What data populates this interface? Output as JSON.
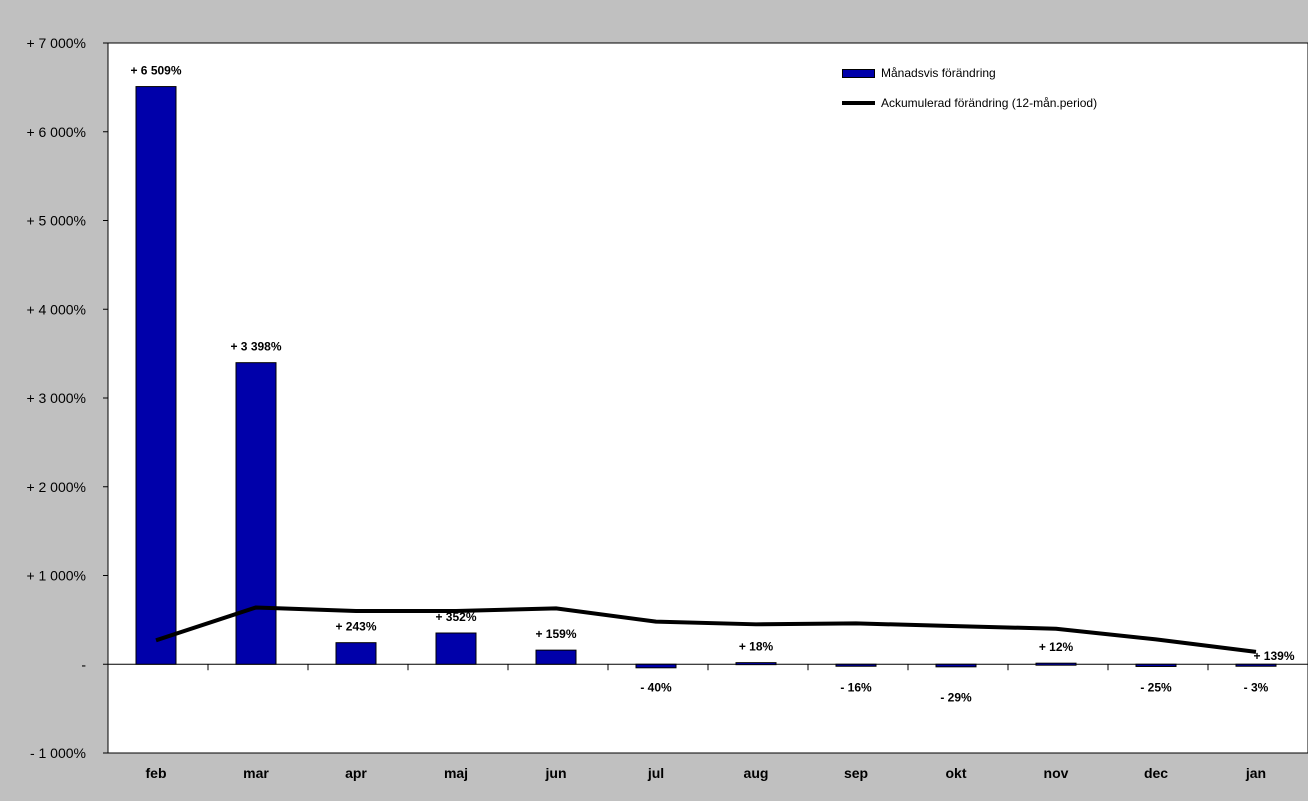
{
  "chart_data": {
    "type": "bar",
    "title": "",
    "xlabel": "",
    "ylabel": "",
    "categories": [
      "feb",
      "mar",
      "apr",
      "maj",
      "jun",
      "jul",
      "aug",
      "sep",
      "okt",
      "nov",
      "dec",
      "jan"
    ],
    "ylim": [
      -1000,
      7000
    ],
    "yticks": [
      -1000,
      0,
      1000,
      2000,
      3000,
      4000,
      5000,
      6000,
      7000
    ],
    "ytick_labels": [
      "- 1 000%",
      "-",
      "+ 1 000%",
      "+ 2 000%",
      "+ 3 000%",
      "+ 4 000%",
      "+ 5 000%",
      "+ 6 000%",
      "+ 7 000%"
    ],
    "grid": false,
    "legend_position": "top-right",
    "series": [
      {
        "name": "Månadsvis förändring",
        "type": "bar",
        "color": "#0000aa",
        "values": [
          6509,
          3398,
          243,
          352,
          159,
          -40,
          18,
          -16,
          -29,
          12,
          -25,
          -3
        ],
        "labels": [
          "+ 6 509%",
          "+ 3 398%",
          "+ 243%",
          "+ 352%",
          "+ 159%",
          "- 40%",
          "+ 18%",
          "- 16%",
          "- 29%",
          "+ 12%",
          "- 25%",
          "- 3%"
        ]
      },
      {
        "name": "Ackumulerad förändring (12-mån.period)",
        "type": "line",
        "color": "#000000",
        "values": [
          270,
          640,
          600,
          600,
          630,
          480,
          450,
          460,
          430,
          400,
          280,
          139
        ],
        "end_label": "+ 139%"
      }
    ]
  }
}
